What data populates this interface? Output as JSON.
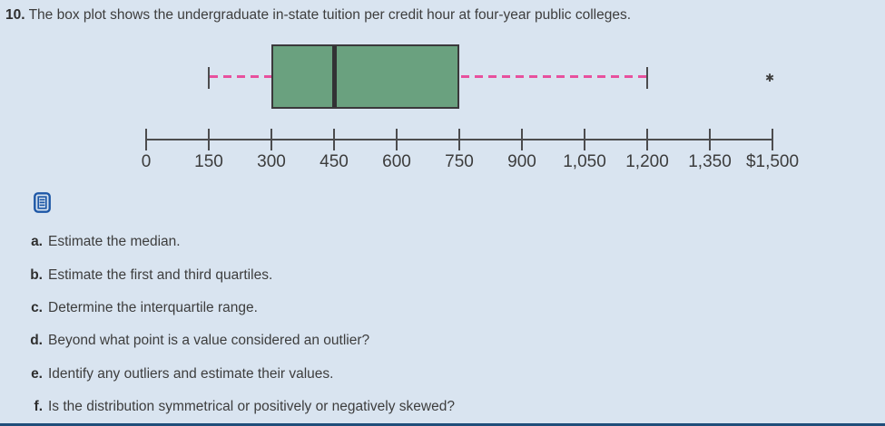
{
  "title": {
    "number": "10.",
    "text": "The box plot shows the undergraduate in-state tuition per credit hour at four-year public colleges."
  },
  "colors": {
    "background": "#d9e4f0",
    "box_fill": "#6aa17f",
    "box_border": "#3a393b",
    "median_line": "#323234",
    "whisker_dash_pink": "#e8509d",
    "whisker_cap": "#4c4c4e",
    "axis": "#4c4c4e",
    "text": "#3d3d3d",
    "icon_blue": "#1d57a6",
    "bottom_bar": "#1f4e7a"
  },
  "icons": {
    "notes_icon": "document-lines-icon",
    "outlier_marker_glyph": "✱"
  },
  "chart_data": {
    "type": "boxplot",
    "orientation": "horizontal",
    "title": "Undergraduate in-state tuition per credit hour at four-year public colleges",
    "min_whisker": 150,
    "q1": 300,
    "median": 450,
    "q3": 750,
    "max_whisker": 1200,
    "outliers": [
      1500
    ],
    "axis": {
      "min": 0,
      "max": 1500,
      "tick_interval": 150,
      "tick_values": [
        0,
        150,
        300,
        450,
        600,
        750,
        900,
        1050,
        1200,
        1350,
        1500
      ],
      "tick_labels": [
        "0",
        "150",
        "300",
        "450",
        "600",
        "750",
        "900",
        "1,050",
        "1,200",
        "1,350",
        "$1,500"
      ]
    }
  },
  "questions": [
    {
      "label": "a.",
      "text": "Estimate the median."
    },
    {
      "label": "b.",
      "text": "Estimate the first and third quartiles."
    },
    {
      "label": "c.",
      "text": "Determine the interquartile range."
    },
    {
      "label": "d.",
      "text": "Beyond what point is a value considered an outlier?"
    },
    {
      "label": "e.",
      "text": "Identify any outliers and estimate their values."
    },
    {
      "label": "f.",
      "text": "Is the distribution symmetrical or positively or negatively skewed?"
    }
  ]
}
